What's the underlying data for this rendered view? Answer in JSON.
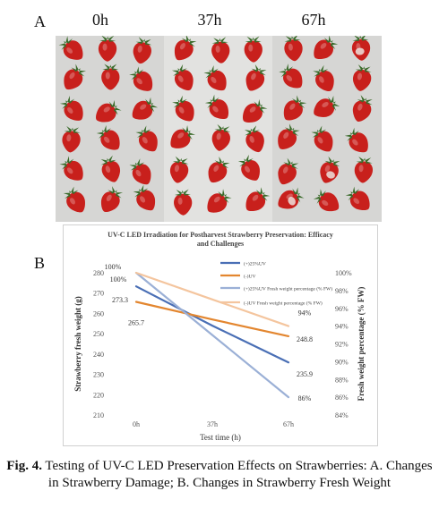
{
  "figure": {
    "panel_a_label": "A",
    "panel_b_label": "B",
    "time_labels": [
      "0h",
      "37h",
      "67h"
    ],
    "caption_number": "Fig. 4.",
    "caption_text": " Testing of UV-C LED Preservation Effects on Strawberries: A. Changes in Strawberry Damage; B. Changes in Strawberry Fresh Weight"
  },
  "colors": {
    "series_uv_weight": "#4a6fb5",
    "series_ck_weight": "#e3862f",
    "series_uv_percent": "#9bb0d6",
    "series_ck_percent": "#f4c59e",
    "photo_background": "#d8d8d6",
    "strawberry_red": "#c8201c",
    "leaf_green": "#3a6b2a"
  },
  "chart_data": {
    "type": "line",
    "title": "UV-C LED Irradiation for Postharvest Strawberry Preservation: Efficacy and Challenges",
    "xlabel": "Test time (h)",
    "ylabel_left": "Strawberry fresh weight (g)",
    "ylabel_right": "Fresh weight percentage (% FW)",
    "categories": [
      "0h",
      "37h",
      "67h"
    ],
    "ylim_left": [
      210,
      280
    ],
    "yticks_left": [
      "210",
      "220",
      "230",
      "240",
      "250",
      "260",
      "270",
      "280"
    ],
    "ylim_right": [
      84,
      100
    ],
    "yticks_right": [
      "84%",
      "86%",
      "88%",
      "90%",
      "92%",
      "94%",
      "96%",
      "98%",
      "100%"
    ],
    "legend_position": "top-right",
    "grid": false,
    "series": [
      {
        "name": "(+)25%UV",
        "axis": "left",
        "values": [
          273.3,
          254,
          235.9
        ],
        "color_key": "series_uv_weight"
      },
      {
        "name": "(-)UV",
        "axis": "left",
        "values": [
          265.7,
          257,
          248.8
        ],
        "color_key": "series_ck_weight"
      },
      {
        "name": "(+)25%UV Fresh weight percentage (% FW)",
        "axis": "right",
        "values": [
          100,
          93,
          86
        ],
        "color_key": "series_uv_percent"
      },
      {
        "name": "(-)UV Fresh weight percentage (% FW)",
        "axis": "right",
        "values": [
          100,
          97,
          94
        ],
        "color_key": "series_ck_percent"
      }
    ],
    "data_labels": [
      {
        "text": "100%",
        "series": 2,
        "index": 0,
        "dx": -26,
        "dy": -4
      },
      {
        "text": "100%",
        "series": 2,
        "index": 0,
        "dx": -20,
        "dy": 10
      },
      {
        "text": "273.3",
        "series": 0,
        "index": 0,
        "dx": -18,
        "dy": 18
      },
      {
        "text": "265.7",
        "series": 1,
        "index": 0,
        "dx": 0,
        "dy": 26
      },
      {
        "text": "94%",
        "series": 3,
        "index": 2,
        "dx": 18,
        "dy": -12
      },
      {
        "text": "248.8",
        "series": 1,
        "index": 2,
        "dx": 18,
        "dy": 6
      },
      {
        "text": "235.9",
        "series": 0,
        "index": 2,
        "dx": 18,
        "dy": 16
      },
      {
        "text": "86%",
        "series": 2,
        "index": 2,
        "dx": 18,
        "dy": 4
      }
    ]
  }
}
